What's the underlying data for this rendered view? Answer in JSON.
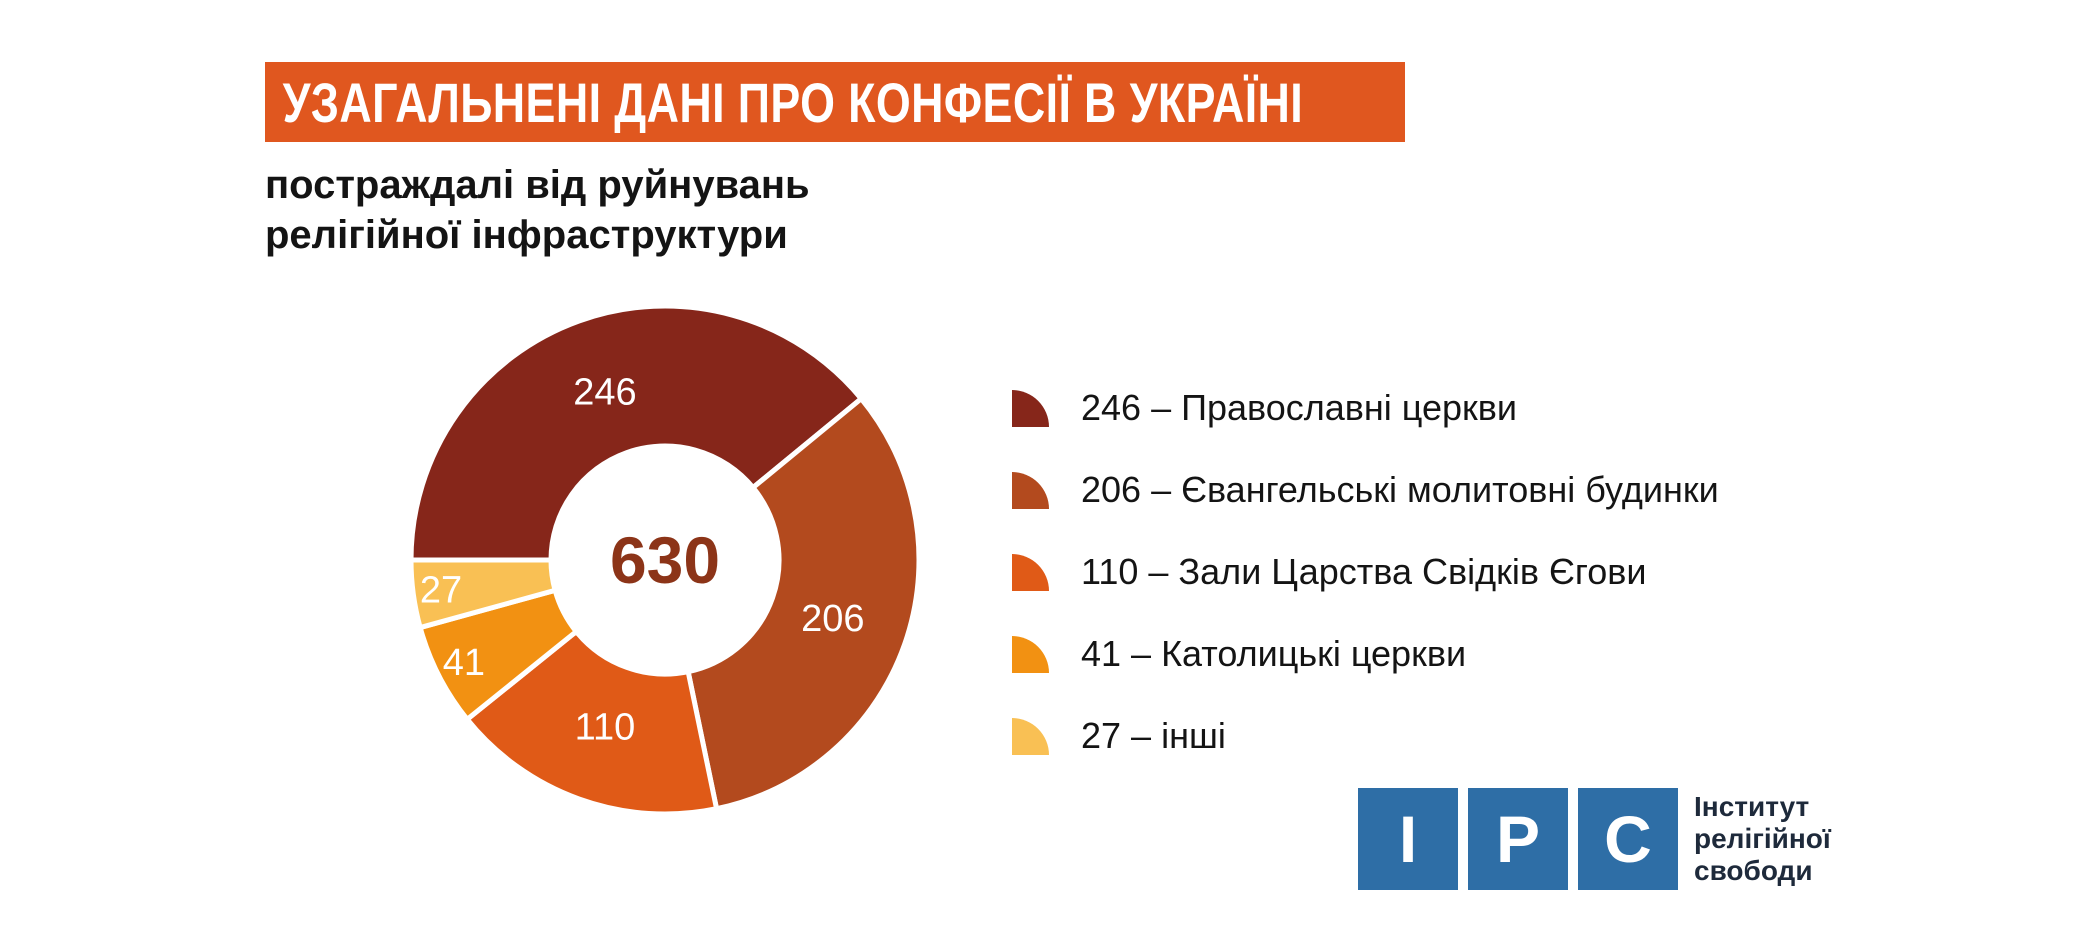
{
  "theme": {
    "accent_orange": "#E0571F",
    "banner_text": "#FFFFFF",
    "text_dark": "#141414",
    "total_color": "#8C3418",
    "slice_label_color": "#FFFFFF",
    "logo_blue": "#2E6EA6",
    "logo_text_color": "#1E2A3B",
    "background": "#FFFFFF"
  },
  "title": {
    "text": "УЗАГАЛЬНЕНІ ДАНІ ПРО КОНФЕСІЇ В УКРАЇНІ"
  },
  "subtitle": {
    "line1": "постраждалі від руйнувань",
    "line2": "релігійної інфраструктури"
  },
  "chart_data": {
    "type": "pie",
    "title": "Узагальнені дані про конфесії в Україні — постраждалі від руйнувань релігійної інфраструктури",
    "categories": [
      "Православні церкви",
      "Євангельські молитовні будинки",
      "Зали Царства Свідків Єгови",
      "Католицькі церкви",
      "інші"
    ],
    "values": [
      246,
      206,
      110,
      41,
      27
    ],
    "colors": [
      "#86261A",
      "#B34A1E",
      "#E05A17",
      "#F29112",
      "#F9C054"
    ],
    "total": 630,
    "total_label": "630",
    "donut": true,
    "inner_radius_ratio": 0.45,
    "start_angle_clockwise_from_top": 270,
    "direction": "clockwise",
    "slice_labels": [
      "246",
      "206",
      "110",
      "41",
      "27"
    ],
    "legend_position": "right",
    "legend_separator": "–"
  },
  "logo": {
    "square_letters": [
      "І",
      "Р",
      "С"
    ],
    "text_lines": [
      "Інститут",
      "релігійної",
      "свободи"
    ]
  }
}
